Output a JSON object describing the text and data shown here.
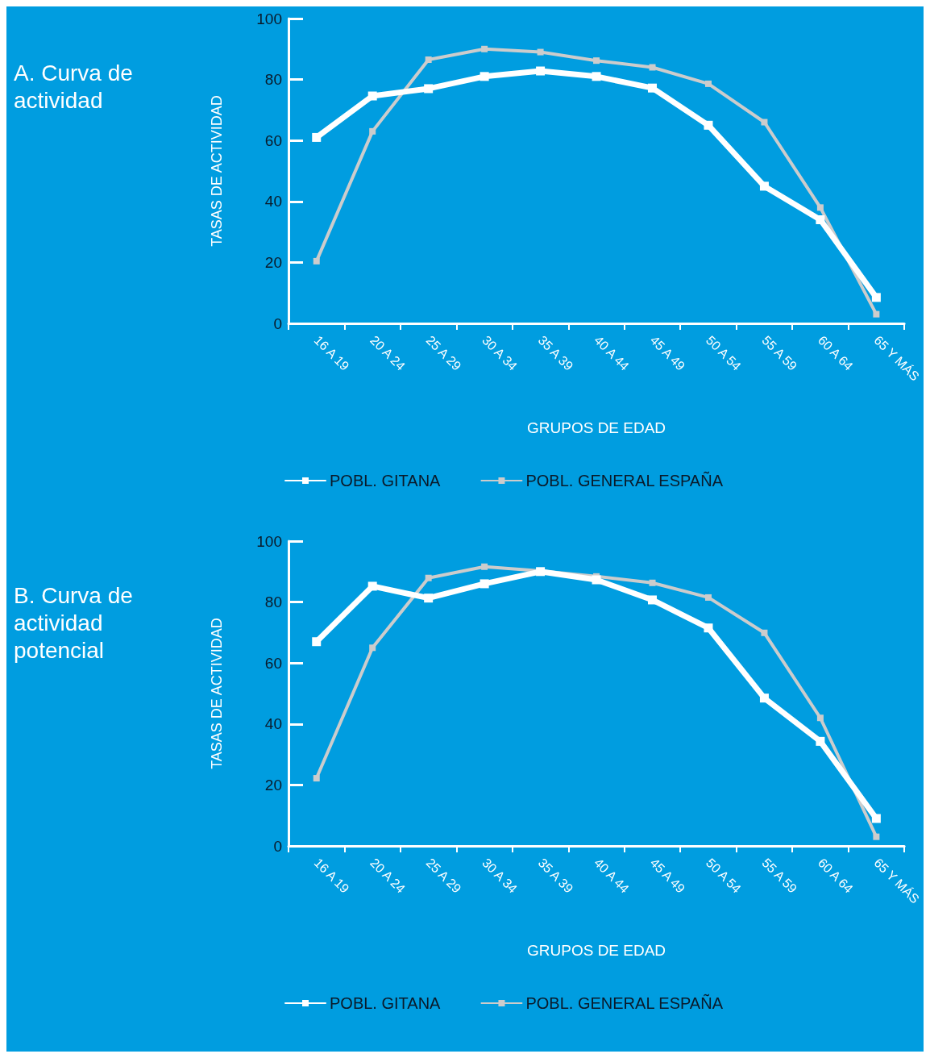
{
  "chart_data": [
    {
      "type": "line",
      "title": "A. Curva de actividad",
      "xlabel": "GRUPOS DE EDAD",
      "ylabel": "TASAS DE ACTIVIDAD",
      "categories": [
        "16 A 19",
        "20 A 24",
        "25 A 29",
        "30 A 34",
        "35 A 39",
        "40 A 44",
        "45 A 49",
        "50 A 54",
        "55 A 59",
        "60 A 64",
        "65 Y MÁS"
      ],
      "series": [
        {
          "name": "POBL. GITANA",
          "color": "#ffffff",
          "values": [
            61,
            74.6,
            77,
            81,
            82.8,
            81,
            77.2,
            65,
            45,
            34,
            8.5
          ]
        },
        {
          "name": "POBL. GENERAL ESPAÑA",
          "color": "#cccccc",
          "values": [
            20.4,
            63,
            86.5,
            90,
            89,
            86.2,
            84,
            78.6,
            66,
            38,
            3
          ]
        }
      ],
      "ylim": [
        0,
        100
      ],
      "yticks": [
        0,
        20,
        40,
        60,
        80,
        100
      ],
      "grid": false,
      "legend": "bottom",
      "marker": "square",
      "line_style": "solid"
    },
    {
      "type": "line",
      "title": "B. Curva de actividad potencial",
      "xlabel": "GRUPOS DE EDAD",
      "ylabel": "TASAS DE ACTIVIDAD",
      "categories": [
        "16 A 19",
        "20 A 24",
        "25 A 29",
        "30 A 34",
        "35 A 39",
        "40 A 44",
        "45 A 49",
        "50 A 54",
        "55 A 59",
        "60 A 64",
        "65 Y MÁS"
      ],
      "series": [
        {
          "name": "POBL. GITANA",
          "color": "#ffffff",
          "values": [
            67,
            85.2,
            81.3,
            86,
            90,
            87.3,
            80.7,
            71.5,
            48.5,
            34.3,
            9
          ]
        },
        {
          "name": "POBL. GENERAL ESPAÑA",
          "color": "#cccccc",
          "values": [
            22.2,
            65,
            87.9,
            91.6,
            90.2,
            88.4,
            86.3,
            81.5,
            69.9,
            42,
            3
          ]
        }
      ],
      "ylim": [
        0,
        100
      ],
      "yticks": [
        0,
        20,
        40,
        60,
        80,
        100
      ],
      "grid": false,
      "legend": "bottom",
      "marker": "square",
      "line_style": "solid"
    }
  ]
}
